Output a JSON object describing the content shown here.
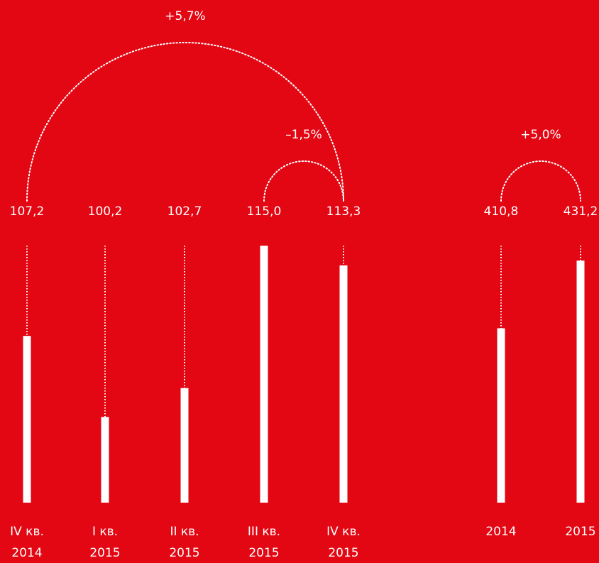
{
  "colors": {
    "background": "#E30613",
    "foreground": "#FFFFFF"
  },
  "chart_data": [
    {
      "type": "bar",
      "categories": [
        "IV кв.\n2014",
        "I кв.\n2015",
        "II кв.\n2015",
        "III кв.\n2015",
        "IV кв.\n2015"
      ],
      "category_lines": [
        [
          "IV кв.",
          "2014"
        ],
        [
          "I кв.",
          "2015"
        ],
        [
          "II кв.",
          "2015"
        ],
        [
          "III кв.",
          "2015"
        ],
        [
          "IV кв.",
          "2015"
        ]
      ],
      "values": [
        107.2,
        100.2,
        102.7,
        115.0,
        113.3
      ],
      "value_labels": [
        "107,2",
        "100,2",
        "102,7",
        "115,0",
        "113,3"
      ],
      "annotations": [
        {
          "from": 0,
          "to": 4,
          "label": "+5,7%"
        },
        {
          "from": 3,
          "to": 4,
          "label": "–1,5%"
        }
      ]
    },
    {
      "type": "bar",
      "categories": [
        "2014",
        "2015"
      ],
      "category_lines": [
        [
          "2014"
        ],
        [
          "2015"
        ]
      ],
      "values": [
        410.8,
        431.2
      ],
      "value_labels": [
        "410,8",
        "431,2"
      ],
      "annotations": [
        {
          "from": 0,
          "to": 1,
          "label": "+5,0%"
        }
      ]
    }
  ]
}
